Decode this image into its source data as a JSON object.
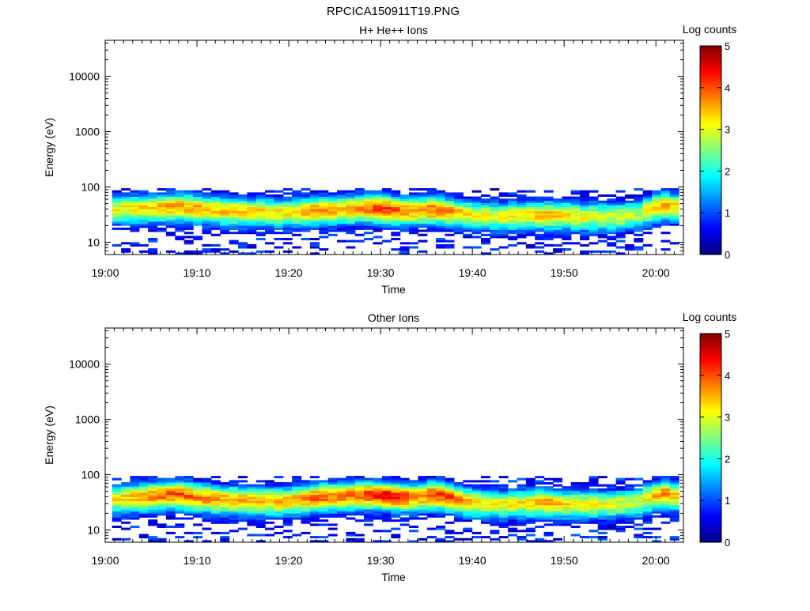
{
  "figure_title": "RPCICA150911T19.PNG",
  "colormap": [
    "#00007f",
    "#0000ff",
    "#007fff",
    "#00ffff",
    "#7fff7f",
    "#ffff00",
    "#ff7f00",
    "#ff0000",
    "#7f0000"
  ],
  "chart_data": [
    {
      "type": "heatmap",
      "title": "H+ He++ Ions",
      "xlabel": "Time",
      "ylabel": "Energy (eV)",
      "yscale": "log",
      "xlim": [
        "19:00",
        "20:03"
      ],
      "ylim": [
        6,
        45000
      ],
      "xticks": [
        "19:00",
        "19:10",
        "19:20",
        "19:30",
        "19:40",
        "19:50",
        "20:00"
      ],
      "yticks": [
        10,
        100,
        1000,
        10000
      ],
      "ytick_labels": [
        "10",
        "100",
        "1000",
        "10000"
      ],
      "colorbar": {
        "label": "Log counts",
        "range": [
          0,
          5
        ],
        "ticks": [
          "0",
          "1",
          "2",
          "3",
          "4",
          "5"
        ]
      },
      "time_range": [
        "19:00:45",
        "20:02:30"
      ],
      "energy_band_eV": [
        6,
        95
      ],
      "band_profile": {
        "time_min": [
          0,
          5,
          8,
          10,
          13,
          16,
          20,
          23,
          26,
          28,
          30,
          32,
          34,
          36,
          38,
          40,
          43,
          46,
          48,
          50,
          52,
          55,
          58,
          60,
          61,
          62
        ],
        "peak_log_counts": [
          2.9,
          3.5,
          3.6,
          3.5,
          3.4,
          3.3,
          3.2,
          3.8,
          3.5,
          3.8,
          4.2,
          3.9,
          3.5,
          4.0,
          3.6,
          3.2,
          3.0,
          3.2,
          3.5,
          3.3,
          3.1,
          3.0,
          2.8,
          3.4,
          3.6,
          3.3
        ],
        "peak_energy_eV": [
          40,
          42,
          45,
          42,
          38,
          36,
          35,
          38,
          40,
          42,
          42,
          38,
          38,
          40,
          35,
          32,
          30,
          32,
          32,
          32,
          30,
          30,
          32,
          45,
          48,
          45
        ]
      }
    },
    {
      "type": "heatmap",
      "title": "Other Ions",
      "xlabel": "Time",
      "ylabel": "Energy (eV)",
      "yscale": "log",
      "xlim": [
        "19:00",
        "20:03"
      ],
      "ylim": [
        6,
        45000
      ],
      "xticks": [
        "19:00",
        "19:10",
        "19:20",
        "19:30",
        "19:40",
        "19:50",
        "20:00"
      ],
      "yticks": [
        10,
        100,
        1000,
        10000
      ],
      "ytick_labels": [
        "10",
        "100",
        "1000",
        "10000"
      ],
      "colorbar": {
        "label": "Log counts",
        "range": [
          0,
          5
        ],
        "ticks": [
          "0",
          "1",
          "2",
          "3",
          "4",
          "5"
        ]
      },
      "time_range": [
        "19:00:45",
        "20:02:30"
      ],
      "energy_band_eV": [
        6,
        95
      ],
      "band_profile": {
        "time_min": [
          0,
          5,
          8,
          10,
          13,
          16,
          20,
          23,
          26,
          28,
          30,
          32,
          34,
          36,
          38,
          40,
          43,
          46,
          48,
          50,
          52,
          55,
          58,
          60,
          61,
          62
        ],
        "peak_log_counts": [
          3.0,
          3.8,
          4.0,
          3.8,
          3.6,
          3.5,
          3.4,
          3.9,
          3.8,
          4.0,
          4.3,
          4.2,
          3.6,
          4.2,
          3.9,
          3.4,
          3.1,
          3.2,
          3.6,
          3.3,
          3.2,
          3.0,
          2.9,
          3.5,
          3.8,
          3.4
        ],
        "peak_energy_eV": [
          35,
          42,
          45,
          40,
          36,
          35,
          34,
          40,
          42,
          44,
          44,
          40,
          40,
          45,
          38,
          32,
          30,
          32,
          32,
          30,
          30,
          30,
          32,
          44,
          46,
          42
        ]
      }
    }
  ]
}
